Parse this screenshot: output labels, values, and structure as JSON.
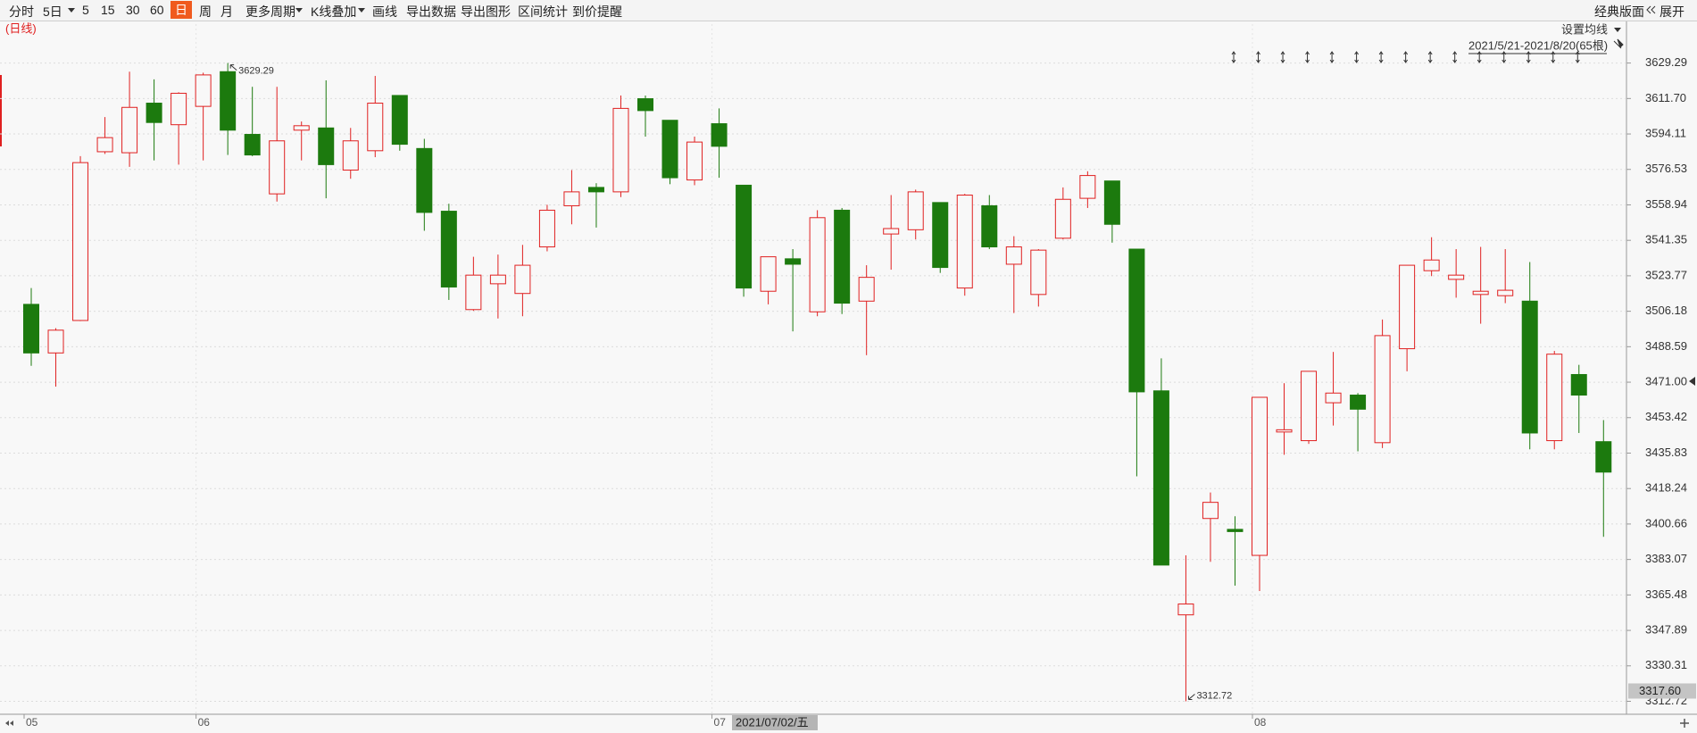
{
  "toolbar": {
    "left": [
      "分时",
      "5日",
      "5",
      "15",
      "30",
      "60",
      "日",
      "周",
      "月",
      "更多周期",
      "K线叠加",
      "画线",
      "导出数据",
      "导出图形",
      "区间统计",
      "到价提醒"
    ],
    "right": [
      "经典版面",
      "展开"
    ],
    "active": "日"
  },
  "chart_header": {
    "period": "(日线)",
    "ma_setting": "设置均线",
    "range": "2021/5/21-2021/8/20(65根)"
  },
  "chart_data": {
    "type": "candlestick",
    "categories": [
      "05",
      null,
      null,
      null,
      null,
      null,
      null,
      "06",
      null,
      null,
      null,
      null,
      null,
      null,
      null,
      null,
      null,
      null,
      null,
      null,
      null,
      null,
      null,
      null,
      null,
      null,
      null,
      null,
      "07",
      null,
      null,
      null,
      null,
      null,
      null,
      null,
      null,
      null,
      null,
      null,
      null,
      null,
      null,
      null,
      null,
      null,
      null,
      null,
      null,
      null,
      "08",
      null,
      null,
      null,
      null,
      null,
      null,
      null,
      null,
      null,
      null,
      null,
      null,
      null,
      null
    ],
    "open": [
      3509.6,
      3485.5,
      3501.6,
      3585.3,
      3584.8,
      3609.4,
      3598.7,
      3607.8,
      3625.0,
      3593.9,
      3564.4,
      3596.0,
      3597.1,
      3576.2,
      3585.8,
      3613.2,
      3586.9,
      3555.8,
      3507.0,
      3519.8,
      3515.0,
      3538.1,
      3558.5,
      3567.6,
      3565.4,
      3611.6,
      3600.9,
      3571.3,
      3599.2,
      3568.7,
      3516.1,
      3532.2,
      3505.9,
      3556.3,
      3511.2,
      3544.5,
      3546.6,
      3560.1,
      3517.7,
      3558.5,
      3529.5,
      3514.5,
      3542.4,
      3562.2,
      3570.8,
      3537.0,
      3466.7,
      3355.6,
      3403.4,
      3398.0,
      3385.1,
      3446.3,
      3442.0,
      3460.8,
      3464.6,
      3441.0,
      3487.6,
      3526.3,
      3522.0,
      3514.5,
      3513.9,
      3511.2,
      3442.0,
      3474.8,
      3441.5
    ],
    "high": [
      3517.7,
      3497.8,
      3583.1,
      3602.5,
      3625.0,
      3621.2,
      3614.8,
      3624.5,
      3629.29,
      3617.5,
      3617.5,
      3600.3,
      3620.7,
      3597.1,
      3622.9,
      3613.2,
      3591.7,
      3559.5,
      3533.2,
      3534.3,
      3539.1,
      3559.0,
      3576.2,
      3569.7,
      3613.2,
      3613.2,
      3600.9,
      3592.8,
      3606.8,
      3568.7,
      3533.2,
      3537.0,
      3556.3,
      3557.4,
      3529.0,
      3563.8,
      3566.5,
      3560.1,
      3564.4,
      3563.8,
      3543.4,
      3537.0,
      3567.6,
      3575.6,
      3570.8,
      3537.0,
      3482.8,
      3385.1,
      3416.3,
      3404.5,
      3463.5,
      3470.5,
      3476.4,
      3486.0,
      3465.6,
      3502.1,
      3529.0,
      3542.9,
      3537.0,
      3538.1,
      3537.0,
      3530.6,
      3486.5,
      3479.6,
      3452.2
    ],
    "low": [
      3479.1,
      3468.8,
      3501.3,
      3584.2,
      3577.8,
      3581.0,
      3578.9,
      3581.0,
      3583.7,
      3583.1,
      3560.6,
      3581.0,
      3562.2,
      3571.9,
      3582.6,
      3585.8,
      3546.1,
      3511.8,
      3506.4,
      3502.6,
      3503.7,
      3535.9,
      3549.3,
      3547.7,
      3562.8,
      3592.8,
      3569.2,
      3568.7,
      3572.4,
      3513.4,
      3509.6,
      3496.2,
      3503.7,
      3504.8,
      3484.4,
      3526.8,
      3541.8,
      3525.2,
      3513.9,
      3537.0,
      3505.3,
      3508.5,
      3541.8,
      3557.4,
      3540.2,
      3424.3,
      3380.3,
      3312.72,
      3381.9,
      3370.1,
      3367.4,
      3435.0,
      3440.4,
      3449.5,
      3436.7,
      3438.3,
      3476.4,
      3523.6,
      3512.9,
      3500.0,
      3510.2,
      3437.7,
      3437.7,
      3445.8,
      3394.3
    ],
    "close": [
      3485.5,
      3496.8,
      3579.9,
      3592.3,
      3607.3,
      3599.8,
      3614.3,
      3623.4,
      3596.0,
      3583.7,
      3590.7,
      3598.2,
      3578.9,
      3590.7,
      3609.4,
      3589.0,
      3555.2,
      3518.2,
      3524.1,
      3524.1,
      3529.0,
      3556.3,
      3565.4,
      3565.4,
      3606.8,
      3605.7,
      3572.4,
      3590.1,
      3588.0,
      3517.7,
      3533.2,
      3529.5,
      3552.6,
      3510.2,
      3523.0,
      3547.2,
      3565.4,
      3527.9,
      3563.8,
      3538.1,
      3538.1,
      3536.5,
      3561.7,
      3573.5,
      3549.3,
      3466.2,
      3380.3,
      3361.0,
      3411.4,
      3396.9,
      3463.5,
      3447.4,
      3476.4,
      3465.6,
      3457.6,
      3494.1,
      3529.0,
      3531.6,
      3524.1,
      3516.1,
      3516.6,
      3445.8,
      3484.9,
      3464.6,
      3426.4
    ],
    "up_color": "#e02020",
    "down_color": "#1c7a0e",
    "ylim": [
      3306.3,
      3648.6
    ],
    "yticks": [
      3629.29,
      {
        "value": 3611.7,
        "label": "3611.70"
      },
      3594.11,
      3576.53,
      3558.94,
      3541.35,
      3523.77,
      3506.18,
      3488.59,
      {
        "value": 3471.0,
        "label": "3471.00"
      },
      3453.42,
      3435.83,
      3418.24,
      3400.66,
      3383.07,
      3365.48,
      3347.89,
      3330.31,
      3312.72
    ],
    "grid": true,
    "max_label": 3629.29,
    "min_label": 3312.72,
    "crosshair": {
      "date": "2021/07/02/五",
      "price": {
        "value": 3317.6,
        "label": "3317.60"
      }
    }
  }
}
